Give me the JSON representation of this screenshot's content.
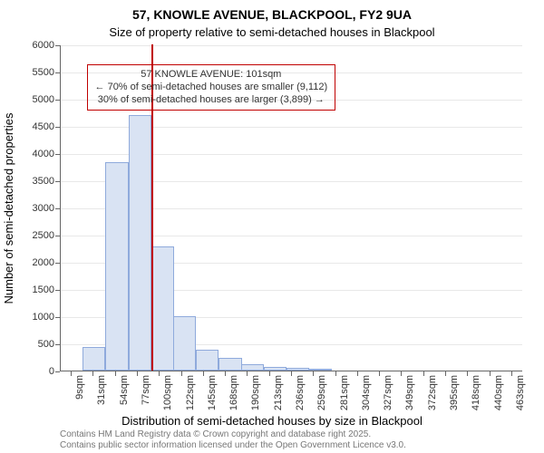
{
  "title_line1": "57, KNOWLE AVENUE, BLACKPOOL, FY2 9UA",
  "title_line2": "Size of property relative to semi-detached houses in Blackpool",
  "title_fontsize": 14,
  "subtitle_fontsize": 13,
  "ylabel": "Number of semi-detached properties",
  "xlabel": "Distribution of semi-detached houses by size in Blackpool",
  "axis_label_fontsize": 13,
  "tick_fontsize": 11,
  "footnote_fontsize": 10,
  "footnote_line1": "Contains HM Land Registry data © Crown copyright and database right 2025.",
  "footnote_line2": "Contains public sector information licensed under the Open Government Licence v3.0.",
  "chart": {
    "type": "histogram",
    "background_color": "#ffffff",
    "grid_color": "#e8e8e8",
    "axis_color": "#666666",
    "bar_fill": "#d9e3f3",
    "bar_stroke": "#8faadc",
    "bar_stroke_width": 1,
    "ylim": [
      0,
      6000
    ],
    "ytick_step": 500,
    "yticks": [
      0,
      500,
      1000,
      1500,
      2000,
      2500,
      3000,
      3500,
      4000,
      4500,
      5000,
      5500,
      6000
    ],
    "xticks": [
      "9sqm",
      "31sqm",
      "54sqm",
      "77sqm",
      "100sqm",
      "122sqm",
      "145sqm",
      "168sqm",
      "190sqm",
      "213sqm",
      "236sqm",
      "259sqm",
      "281sqm",
      "304sqm",
      "327sqm",
      "349sqm",
      "372sqm",
      "395sqm",
      "418sqm",
      "440sqm",
      "463sqm"
    ],
    "x_min": 9,
    "x_max": 474,
    "bar_width_sqm": 23,
    "bars": [
      {
        "x_start": 9,
        "value": 0
      },
      {
        "x_start": 31,
        "value": 430
      },
      {
        "x_start": 54,
        "value": 3830
      },
      {
        "x_start": 77,
        "value": 4700
      },
      {
        "x_start": 100,
        "value": 2280
      },
      {
        "x_start": 122,
        "value": 1000
      },
      {
        "x_start": 145,
        "value": 380
      },
      {
        "x_start": 168,
        "value": 230
      },
      {
        "x_start": 190,
        "value": 110
      },
      {
        "x_start": 213,
        "value": 60
      },
      {
        "x_start": 236,
        "value": 45
      },
      {
        "x_start": 259,
        "value": 25
      },
      {
        "x_start": 281,
        "value": 0
      },
      {
        "x_start": 304,
        "value": 0
      },
      {
        "x_start": 327,
        "value": 0
      },
      {
        "x_start": 349,
        "value": 0
      },
      {
        "x_start": 372,
        "value": 0
      },
      {
        "x_start": 395,
        "value": 0
      },
      {
        "x_start": 418,
        "value": 0
      },
      {
        "x_start": 440,
        "value": 0
      }
    ],
    "indicator": {
      "x_value": 101,
      "color": "#c00000",
      "width": 2
    },
    "annotation": {
      "line1": "57 KNOWLE AVENUE: 101sqm",
      "line2": "← 70% of semi-detached houses are smaller (9,112)",
      "line3": "30% of semi-detached houses are larger (3,899) →",
      "border_color": "#c00000",
      "text_color": "#333333",
      "fontsize": 11,
      "top_value": 5650,
      "left_value": 35
    }
  }
}
